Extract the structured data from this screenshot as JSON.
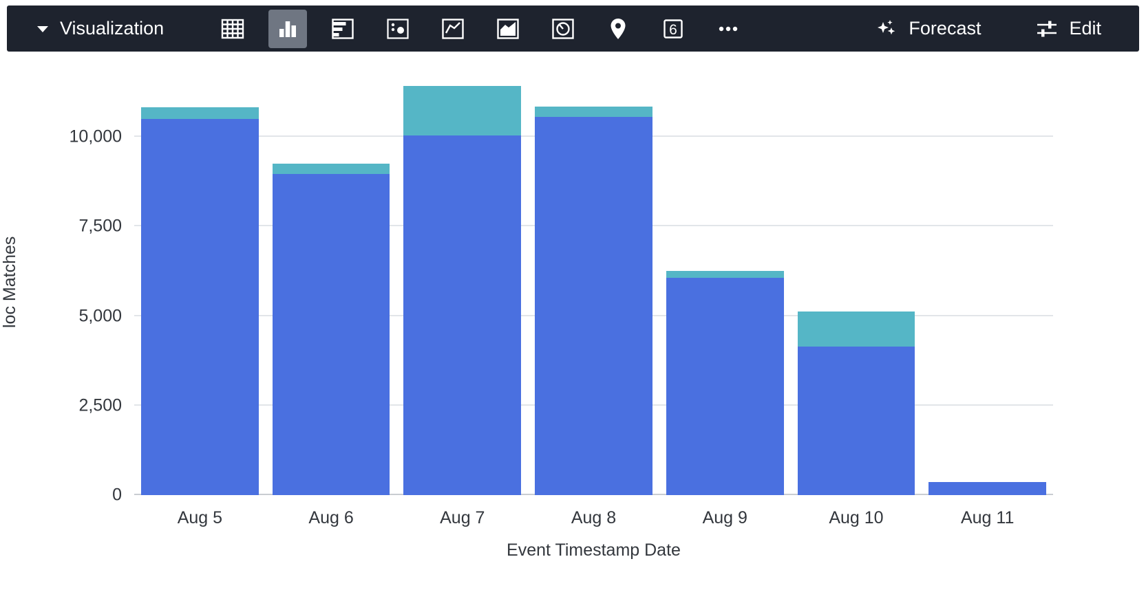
{
  "toolbar": {
    "title": "Visualization",
    "icons": [
      {
        "name": "table-icon",
        "selected": false
      },
      {
        "name": "column-chart-icon",
        "selected": true
      },
      {
        "name": "bar-chart-icon",
        "selected": false
      },
      {
        "name": "bubble-chart-icon",
        "selected": false
      },
      {
        "name": "line-chart-icon",
        "selected": false
      },
      {
        "name": "area-chart-icon",
        "selected": false
      },
      {
        "name": "pie-chart-icon",
        "selected": false
      },
      {
        "name": "map-pin-icon",
        "selected": false
      },
      {
        "name": "single-value-icon",
        "selected": false,
        "glyph": "6"
      },
      {
        "name": "more-icon",
        "selected": false
      }
    ],
    "forecast_label": "Forecast",
    "edit_label": "Edit"
  },
  "chart_data": {
    "type": "bar",
    "stacked": true,
    "title": "",
    "xlabel": "Event Timestamp Date",
    "ylabel": "loc Matches",
    "categories": [
      "Aug 5",
      "Aug 6",
      "Aug 7",
      "Aug 8",
      "Aug 9",
      "Aug 10",
      "Aug 11"
    ],
    "series": [
      {
        "name": "series-1",
        "color": "#4a70e0",
        "values": [
          10500,
          8970,
          10030,
          10560,
          6060,
          4140,
          360
        ]
      },
      {
        "name": "series-2",
        "color": "#55b6c6",
        "values": [
          330,
          290,
          1390,
          280,
          190,
          990,
          0
        ]
      }
    ],
    "ylim": [
      0,
      11900
    ],
    "yticks": [
      {
        "value": 0,
        "label": "0"
      },
      {
        "value": 2500,
        "label": "2,500"
      },
      {
        "value": 5000,
        "label": "5,000"
      },
      {
        "value": 7500,
        "label": "7,500"
      },
      {
        "value": 10000,
        "label": "10,000"
      }
    ],
    "grid": "horizontal",
    "legend": "none"
  },
  "colors": {
    "toolbar_bg": "#1e232e",
    "selected_icon_bg": "#6f7682",
    "bar_blue": "#4a70e0",
    "bar_teal": "#55b6c6",
    "gridline": "#e2e5e9",
    "axis_line": "#c9ccd1",
    "axis_text": "#33373d"
  }
}
